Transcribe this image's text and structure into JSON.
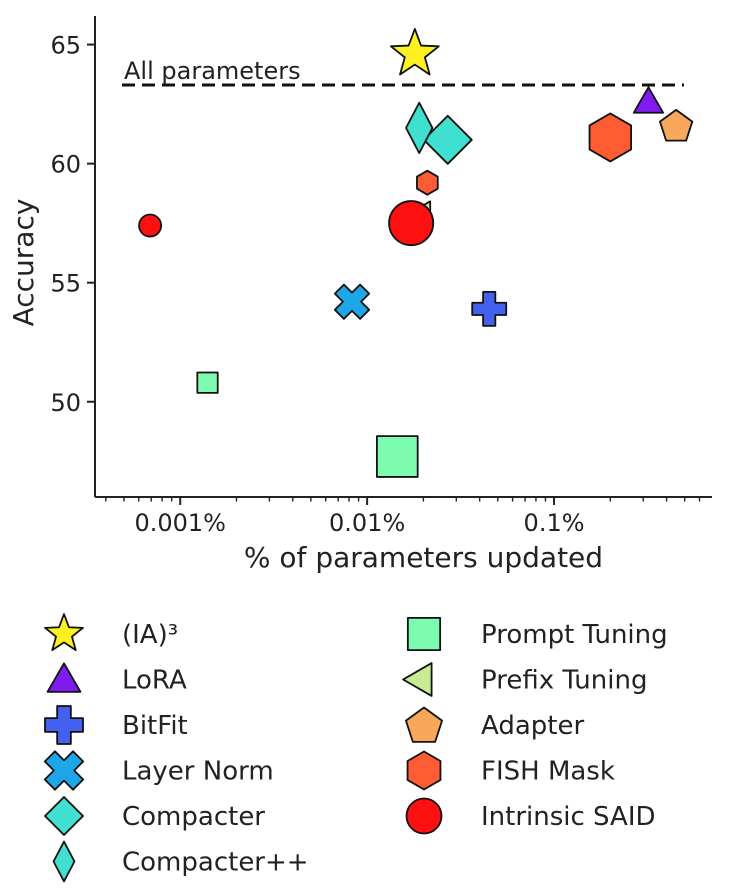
{
  "chart_data": {
    "type": "scatter",
    "xlabel": "% of parameters updated",
    "ylabel": "Accuracy",
    "xscale": "log",
    "xlim": [
      0.00035,
      0.7
    ],
    "ylim": [
      46,
      66.2
    ],
    "x_ticks": [
      {
        "value": 0.001,
        "label": "0.001%"
      },
      {
        "value": 0.01,
        "label": "0.01%"
      },
      {
        "value": 0.1,
        "label": "0.1%"
      }
    ],
    "y_ticks": [
      {
        "value": 50,
        "label": "50"
      },
      {
        "value": 55,
        "label": "55"
      },
      {
        "value": 60,
        "label": "60"
      },
      {
        "value": 65,
        "label": "65"
      }
    ],
    "grid": false,
    "reference_line": {
      "label": "All parameters",
      "y": 63.3,
      "style": "dashed"
    },
    "series": [
      {
        "name": "(IA)³",
        "marker": "star",
        "color": "#FFF01F",
        "points": [
          {
            "x": 0.018,
            "y": 64.6,
            "size": "large"
          }
        ]
      },
      {
        "name": "LoRA",
        "marker": "triangle-up",
        "color": "#7F1BF0",
        "points": [
          {
            "x": 0.32,
            "y": 62.6,
            "size": "medium"
          }
        ]
      },
      {
        "name": "BitFit",
        "marker": "plus",
        "color": "#4361EE",
        "points": [
          {
            "x": 0.045,
            "y": 53.9,
            "size": "medium"
          }
        ]
      },
      {
        "name": "Layer Norm",
        "marker": "x",
        "color": "#1DA7E8",
        "points": [
          {
            "x": 0.0083,
            "y": 54.2,
            "size": "medium"
          }
        ]
      },
      {
        "name": "Compacter",
        "marker": "diamond",
        "color": "#40E0D0",
        "points": [
          {
            "x": 0.027,
            "y": 61.0,
            "size": "large"
          }
        ]
      },
      {
        "name": "Compacter++",
        "marker": "thin-diamond",
        "color": "#40E0D0",
        "points": [
          {
            "x": 0.019,
            "y": 61.5,
            "size": "large"
          }
        ]
      },
      {
        "name": "Prompt Tuning",
        "marker": "square",
        "color": "#7DFCB0",
        "points": [
          {
            "x": 0.0014,
            "y": 50.8,
            "size": "small"
          },
          {
            "x": 0.0145,
            "y": 47.7,
            "size": "large"
          }
        ]
      },
      {
        "name": "Prefix Tuning",
        "marker": "triangle-left",
        "color": "#C8EB94",
        "points": [
          {
            "x": 0.02,
            "y": 57.8,
            "size": "medium"
          }
        ]
      },
      {
        "name": "Adapter",
        "marker": "pentagon",
        "color": "#F9A75A",
        "points": [
          {
            "x": 0.45,
            "y": 61.6,
            "size": "medium"
          }
        ]
      },
      {
        "name": "FISH Mask",
        "marker": "hexagon",
        "color": "#FF5C33",
        "points": [
          {
            "x": 0.021,
            "y": 59.2,
            "size": "small"
          },
          {
            "x": 0.2,
            "y": 61.1,
            "size": "large"
          }
        ]
      },
      {
        "name": "Intrinsic SAID",
        "marker": "circle",
        "color": "#FF1010",
        "points": [
          {
            "x": 0.00069,
            "y": 57.4,
            "size": "small"
          },
          {
            "x": 0.0172,
            "y": 57.5,
            "size": "large"
          }
        ]
      }
    ],
    "legend": {
      "placement": "bottom",
      "columns": [
        [
          "(IA)³",
          "LoRA",
          "BitFit",
          "Layer Norm",
          "Compacter",
          "Compacter++"
        ],
        [
          "Prompt Tuning",
          "Prefix Tuning",
          "Adapter",
          "FISH Mask",
          "Intrinsic SAID"
        ]
      ]
    }
  }
}
